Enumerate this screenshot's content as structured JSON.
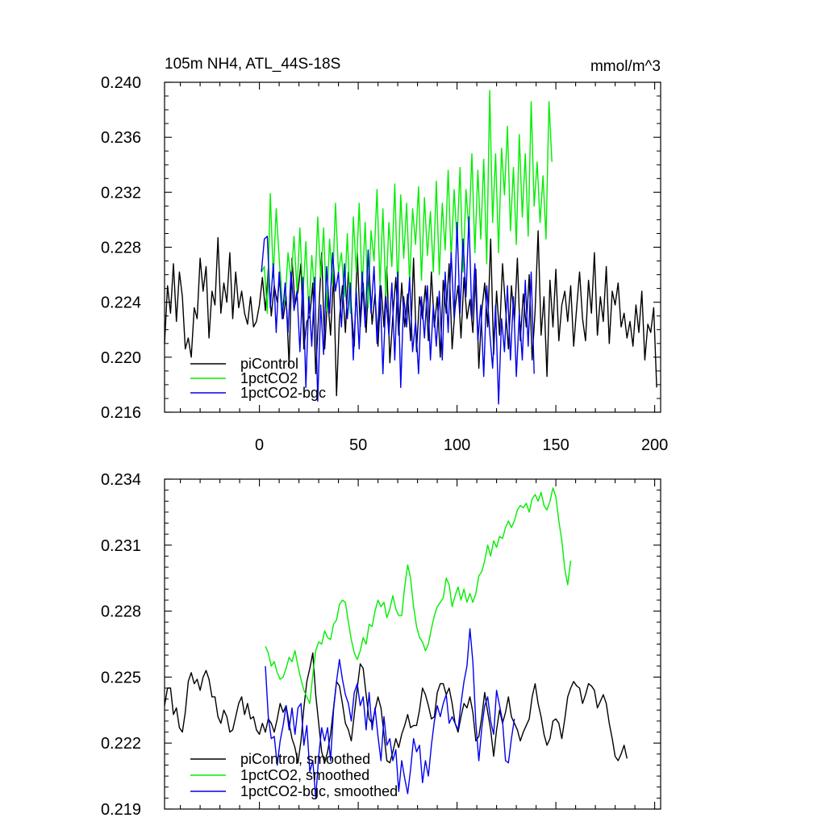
{
  "figure": {
    "title_left": "105m NH4, ATL_44S-18S",
    "title_right": "mmol/m^3"
  },
  "chart_data": [
    {
      "type": "line",
      "panel": "top",
      "title": "105m NH4, ATL_44S-18S",
      "units": "mmol/m^3",
      "xlim": [
        -48,
        203
      ],
      "ylim": [
        0.216,
        0.24
      ],
      "x_ticks": [
        0,
        50,
        100,
        150,
        200
      ],
      "x_tick_labels": [
        "0",
        "50",
        "100",
        "150",
        "200"
      ],
      "y_ticks": [
        0.216,
        0.22,
        0.224,
        0.228,
        0.232,
        0.236,
        0.24
      ],
      "y_tick_labels": [
        "0.216",
        "0.220",
        "0.224",
        "0.228",
        "0.232",
        "0.236",
        "0.240"
      ],
      "legend_position": "bottom-left",
      "series": [
        {
          "name": "piControl",
          "color": "#000000",
          "x_start": -48,
          "x_step": 1.5,
          "values": [
            0.221,
            0.2252,
            0.2232,
            0.2268,
            0.2226,
            0.2262,
            0.2244,
            0.2206,
            0.2214,
            0.22,
            0.2236,
            0.2228,
            0.2272,
            0.2248,
            0.2266,
            0.2214,
            0.2248,
            0.2238,
            0.2287,
            0.2232,
            0.2254,
            0.224,
            0.2276,
            0.2228,
            0.2262,
            0.2236,
            0.2248,
            0.2232,
            0.2224,
            0.2244,
            0.2222,
            0.2226,
            0.2238,
            0.2258,
            0.2234,
            0.2264,
            0.223,
            0.2252,
            0.224,
            0.2262,
            0.2228,
            0.2244,
            0.2194,
            0.2272,
            0.2238,
            0.2248,
            0.2268,
            0.2206,
            0.2226,
            0.223,
            0.2254,
            0.2188,
            0.2232,
            0.2276,
            0.2206,
            0.2244,
            0.2216,
            0.226,
            0.2172,
            0.2228,
            0.2252,
            0.2218,
            0.2262,
            0.2236,
            0.2208,
            0.2276,
            0.2222,
            0.2254,
            0.2218,
            0.2264,
            0.2224,
            0.2246,
            0.2208,
            0.2252,
            0.2222,
            0.2266,
            0.2196,
            0.223,
            0.2258,
            0.2216,
            0.2254,
            0.2222,
            0.2246,
            0.2212,
            0.2272,
            0.2204,
            0.2244,
            0.2228,
            0.2252,
            0.2212,
            0.2262,
            0.2222,
            0.2244,
            0.22,
            0.2256,
            0.2232,
            0.2268,
            0.2206,
            0.2236,
            0.2252,
            0.2214,
            0.2258,
            0.2228,
            0.2242,
            0.2218,
            0.2264,
            0.2192,
            0.2234,
            0.2254,
            0.2222,
            0.2286,
            0.2202,
            0.2248,
            0.2216,
            0.2268,
            0.2236,
            0.2206,
            0.2252,
            0.2226,
            0.2272,
            0.2212,
            0.2246,
            0.2222,
            0.226,
            0.2198,
            0.2234,
            0.2292,
            0.2216,
            0.2244,
            0.2186,
            0.2256,
            0.2222,
            0.2264,
            0.2212,
            0.2238,
            0.2248,
            0.2226,
            0.2252,
            0.2208,
            0.2236,
            0.2262,
            0.2228,
            0.2212,
            0.2256,
            0.2232,
            0.2276,
            0.2216,
            0.2244,
            0.2226,
            0.2266,
            0.221,
            0.2248,
            0.2238,
            0.2254,
            0.2222,
            0.2232,
            0.2214,
            0.2226,
            0.2208,
            0.2238,
            0.2218,
            0.2248,
            0.2198,
            0.2224,
            0.2218,
            0.2236,
            0.2178
          ]
        },
        {
          "name": "1pctCO2",
          "color": "#00ee00",
          "x_start": 1,
          "x_step": 1.5,
          "values": [
            0.2262,
            0.2266,
            0.2232,
            0.2319,
            0.2258,
            0.2308,
            0.2272,
            0.2236,
            0.2242,
            0.2276,
            0.2256,
            0.2288,
            0.2248,
            0.2294,
            0.2244,
            0.2284,
            0.2232,
            0.2274,
            0.2246,
            0.2302,
            0.2258,
            0.2294,
            0.2234,
            0.2286,
            0.2252,
            0.2312,
            0.2262,
            0.2276,
            0.2244,
            0.229,
            0.2232,
            0.2302,
            0.2262,
            0.2312,
            0.2248,
            0.2298,
            0.2236,
            0.2292,
            0.227,
            0.2322,
            0.2252,
            0.2308,
            0.2242,
            0.2298,
            0.2266,
            0.2326,
            0.2248,
            0.2318,
            0.2272,
            0.2312,
            0.2254,
            0.2308,
            0.2282,
            0.2324,
            0.2256,
            0.2316,
            0.2274,
            0.2306,
            0.2262,
            0.2328,
            0.226,
            0.2312,
            0.2278,
            0.2336,
            0.2272,
            0.2322,
            0.2284,
            0.2338,
            0.2262,
            0.2322,
            0.2292,
            0.2348,
            0.2276,
            0.2336,
            0.2286,
            0.2344,
            0.2268,
            0.2394,
            0.2298,
            0.2348,
            0.2276,
            0.2352,
            0.2318,
            0.2368,
            0.2292,
            0.2338,
            0.2282,
            0.2362,
            0.2302,
            0.2348,
            0.2288,
            0.2386,
            0.231,
            0.2342,
            0.2298,
            0.2332,
            0.2286,
            0.2386,
            0.2342
          ]
        },
        {
          "name": "1pctCO2-bgc",
          "color": "#0000ee",
          "x_start": 1,
          "x_step": 1.5,
          "values": [
            0.2262,
            0.2286,
            0.2288,
            0.2236,
            0.2268,
            0.2218,
            0.2262,
            0.2228,
            0.2254,
            0.2218,
            0.2262,
            0.2234,
            0.2248,
            0.2204,
            0.2258,
            0.2178,
            0.2244,
            0.2208,
            0.2258,
            0.2168,
            0.2238,
            0.2202,
            0.2266,
            0.2232,
            0.2276,
            0.2248,
            0.2262,
            0.2222,
            0.2268,
            0.2228,
            0.2254,
            0.2198,
            0.2248,
            0.2206,
            0.2262,
            0.2222,
            0.2278,
            0.2232,
            0.2266,
            0.221,
            0.2252,
            0.2188,
            0.2244,
            0.2216,
            0.2254,
            0.2198,
            0.2262,
            0.2178,
            0.2244,
            0.2222,
            0.2258,
            0.2204,
            0.2226,
            0.2188,
            0.2244,
            0.2214,
            0.2252,
            0.2198,
            0.2238,
            0.2208,
            0.2248,
            0.2198,
            0.2262,
            0.2218,
            0.2276,
            0.2228,
            0.2298,
            0.2232,
            0.2286,
            0.2244,
            0.2302,
            0.2228,
            0.2268,
            0.2212,
            0.2238,
            0.2186,
            0.2252,
            0.2218,
            0.2192,
            0.2238,
            0.2166,
            0.2228,
            0.2204,
            0.2252,
            0.2198,
            0.2244,
            0.2186,
            0.2232,
            0.2198,
            0.2256,
            0.2208,
            0.2262,
            0.2188
          ]
        }
      ],
      "legend": [
        "piControl",
        "1pctCO2",
        "1pctCO2-bgc"
      ]
    },
    {
      "type": "line",
      "panel": "bottom",
      "xlim": [
        -48,
        203
      ],
      "ylim": [
        0.219,
        0.234
      ],
      "x_ticks": [
        0,
        50,
        100,
        150,
        200
      ],
      "y_ticks": [
        0.219,
        0.222,
        0.225,
        0.228,
        0.231,
        0.234
      ],
      "y_tick_labels": [
        "0.219",
        "0.222",
        "0.225",
        "0.228",
        "0.231",
        "0.234"
      ],
      "legend_position": "bottom-left",
      "series": [
        {
          "name": "piControl, smoothed",
          "color": "#000000",
          "x_start": -48,
          "x_step": 1.5,
          "values": [
            0.2237,
            0.2245,
            0.2245,
            0.2233,
            0.2236,
            0.2227,
            0.2225,
            0.2234,
            0.2248,
            0.2252,
            0.2247,
            0.2249,
            0.2244,
            0.225,
            0.2253,
            0.2249,
            0.2241,
            0.2241,
            0.2232,
            0.2229,
            0.2235,
            0.2232,
            0.2225,
            0.2226,
            0.2232,
            0.2238,
            0.2241,
            0.2233,
            0.2238,
            0.2231,
            0.2232,
            0.2226,
            0.2224,
            0.2229,
            0.2225,
            0.2231,
            0.2229,
            0.2225,
            0.2231,
            0.2238,
            0.2234,
            0.2237,
            0.2229,
            0.2222,
            0.2218,
            0.2211,
            0.2221,
            0.2236,
            0.2248,
            0.2254,
            0.2261,
            0.2242,
            0.2229,
            0.2216,
            0.2211,
            0.2216,
            0.2224,
            0.2236,
            0.2248,
            0.2246,
            0.2238,
            0.2229,
            0.2226,
            0.2221,
            0.2233,
            0.2245,
            0.2256,
            0.2254,
            0.2242,
            0.2231,
            0.2229,
            0.2235,
            0.2241,
            0.2236,
            0.2224,
            0.2212,
            0.2211,
            0.2216,
            0.2222,
            0.2218,
            0.2224,
            0.2228,
            0.2233,
            0.2227,
            0.2228,
            0.2228,
            0.2235,
            0.2245,
            0.2242,
            0.2237,
            0.2231,
            0.2232,
            0.2243,
            0.2247,
            0.2247,
            0.2242,
            0.2245,
            0.2238,
            0.2229,
            0.2225,
            0.2232,
            0.2238,
            0.2236,
            0.2241,
            0.2234,
            0.2221,
            0.2223,
            0.2232,
            0.2243,
            0.2234,
            0.2226,
            0.2214,
            0.2226,
            0.2235,
            0.2229,
            0.2234,
            0.2241,
            0.2232,
            0.2229,
            0.2226,
            0.2221,
            0.2225,
            0.2228,
            0.2231,
            0.2241,
            0.2247,
            0.2238,
            0.2232,
            0.2224,
            0.2219,
            0.2222,
            0.223,
            0.2231,
            0.2229,
            0.2222,
            0.2231,
            0.2241,
            0.2245,
            0.2248,
            0.2246,
            0.2245,
            0.2238,
            0.2242,
            0.2247,
            0.2246,
            0.2244,
            0.2236,
            0.2239,
            0.2242,
            0.2238,
            0.2229,
            0.2222,
            0.2214,
            0.2212,
            0.2215,
            0.2219,
            0.2213
          ]
        },
        {
          "name": "1pctCO2, smoothed",
          "color": "#00ee00",
          "x_start": 3,
          "x_step": 1.5,
          "values": [
            0.2264,
            0.2261,
            0.2255,
            0.2257,
            0.2252,
            0.2249,
            0.225,
            0.2254,
            0.2259,
            0.2257,
            0.2262,
            0.2255,
            0.2249,
            0.2244,
            0.2241,
            0.2238,
            0.2251,
            0.2262,
            0.2266,
            0.2265,
            0.2271,
            0.2268,
            0.2267,
            0.2274,
            0.2276,
            0.2283,
            0.2285,
            0.2284,
            0.2275,
            0.2267,
            0.2261,
            0.2258,
            0.2262,
            0.2268,
            0.2265,
            0.2274,
            0.2273,
            0.228,
            0.2285,
            0.2282,
            0.2284,
            0.2277,
            0.2281,
            0.2287,
            0.2281,
            0.2278,
            0.2278,
            0.2291,
            0.2301,
            0.2295,
            0.2282,
            0.2273,
            0.2268,
            0.2266,
            0.2262,
            0.2265,
            0.2272,
            0.2278,
            0.2282,
            0.2284,
            0.2286,
            0.2295,
            0.2292,
            0.2282,
            0.2287,
            0.2291,
            0.2285,
            0.229,
            0.2284,
            0.2288,
            0.2284,
            0.2288,
            0.2296,
            0.2298,
            0.2303,
            0.231,
            0.2305,
            0.2312,
            0.2309,
            0.2314,
            0.2313,
            0.2318,
            0.2321,
            0.2318,
            0.2321,
            0.2326,
            0.2328,
            0.2327,
            0.2329,
            0.2325,
            0.2331,
            0.2333,
            0.233,
            0.2334,
            0.2328,
            0.2326,
            0.233,
            0.2336,
            0.2332,
            0.2321,
            0.2312,
            0.2299,
            0.2292,
            0.2303
          ]
        },
        {
          "name": "1pctCO2-bgc, smoothed",
          "color": "#0000ee",
          "x_start": 3,
          "x_step": 1.5,
          "values": [
            0.2255,
            0.2232,
            0.2222,
            0.2223,
            0.221,
            0.2221,
            0.2228,
            0.2237,
            0.2226,
            0.2236,
            0.2224,
            0.2236,
            0.2238,
            0.2219,
            0.2228,
            0.2207,
            0.2212,
            0.2195,
            0.2214,
            0.2227,
            0.2221,
            0.2227,
            0.2212,
            0.2235,
            0.2248,
            0.2258,
            0.2249,
            0.2242,
            0.2238,
            0.223,
            0.2243,
            0.2247,
            0.2237,
            0.2241,
            0.2226,
            0.2243,
            0.2226,
            0.2236,
            0.2223,
            0.2212,
            0.2232,
            0.2219,
            0.2222,
            0.2212,
            0.2217,
            0.2198,
            0.2212,
            0.2204,
            0.2197,
            0.2208,
            0.2222,
            0.2216,
            0.2219,
            0.2202,
            0.2212,
            0.2205,
            0.2219,
            0.223,
            0.2237,
            0.2232,
            0.2238,
            0.2242,
            0.2229,
            0.2232,
            0.2229,
            0.2226,
            0.2238,
            0.2248,
            0.2255,
            0.2272,
            0.2257,
            0.2229,
            0.2212,
            0.2227,
            0.2237,
            0.2241,
            0.223,
            0.2224,
            0.2244,
            0.2237,
            0.223,
            0.2212,
            0.2211,
            0.2222,
            0.2231
          ]
        }
      ],
      "legend": [
        "piControl, smoothed",
        "1pctCO2, smoothed",
        "1pctCO2-bgc, smoothed"
      ]
    }
  ]
}
